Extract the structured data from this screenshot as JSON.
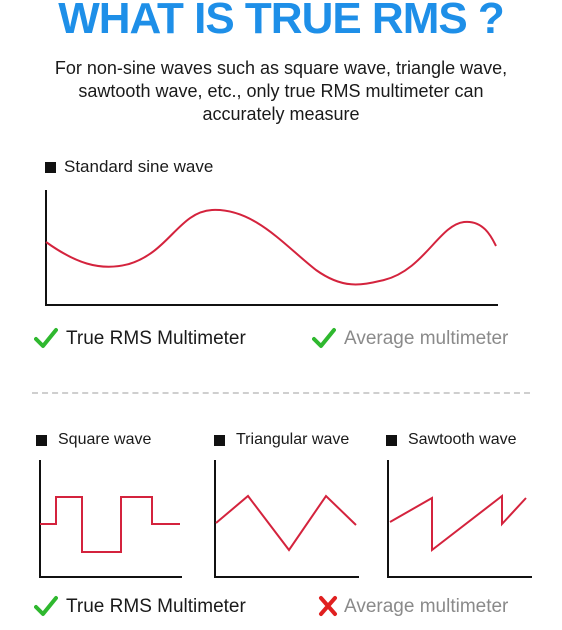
{
  "title": "WHAT IS TRUE RMS ?",
  "subtitle": "For non-sine waves such as square wave, triangle wave, sawtooth wave, etc., only true RMS multimeter can accurately measure",
  "sine_section": {
    "label": "Standard sine wave",
    "results": [
      {
        "text": "True RMS Multimeter",
        "status": "check"
      },
      {
        "text": "Average multimeter",
        "status": "check"
      }
    ]
  },
  "nonsine_section": {
    "waves": [
      {
        "label": "Square wave"
      },
      {
        "label": "Triangular wave"
      },
      {
        "label": "Sawtooth wave"
      }
    ],
    "results": [
      {
        "text": "True RMS Multimeter",
        "status": "check"
      },
      {
        "text": "Average multimeter",
        "status": "cross"
      }
    ]
  },
  "colors": {
    "title": "#1e8fe8",
    "wave": "#d4233d",
    "check": "#2fb82f",
    "cross": "#e02020"
  }
}
